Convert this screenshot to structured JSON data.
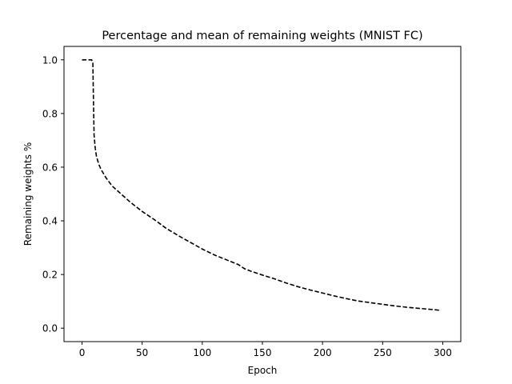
{
  "chart_data": {
    "type": "line",
    "title": "Percentage and mean of remaining weights (MNIST FC)",
    "xlabel": "Epoch",
    "ylabel": "Remaining weights %",
    "xlim": [
      -15,
      315
    ],
    "ylim": [
      -0.05,
      1.05
    ],
    "xticks": [
      0,
      50,
      100,
      150,
      200,
      250,
      300
    ],
    "yticks": [
      "0.0",
      "0.2",
      "0.4",
      "0.6",
      "0.8",
      "1.0"
    ],
    "grid": false,
    "line_color": "#000000",
    "line_style": "dashed",
    "series": [
      {
        "x": [
          0,
          5,
          8,
          9,
          9.5,
          10,
          11,
          12,
          14,
          16,
          20,
          25,
          30,
          35,
          40,
          50,
          60,
          70,
          80,
          90,
          100,
          110,
          120,
          130,
          135,
          140,
          150,
          160,
          170,
          180,
          190,
          200,
          210,
          220,
          230,
          240,
          250,
          260,
          270,
          280,
          290,
          297
        ],
        "y": [
          1.0,
          1.0,
          1.0,
          0.99,
          0.85,
          0.72,
          0.67,
          0.64,
          0.61,
          0.59,
          0.56,
          0.53,
          0.51,
          0.49,
          0.47,
          0.435,
          0.405,
          0.372,
          0.345,
          0.32,
          0.295,
          0.273,
          0.255,
          0.237,
          0.222,
          0.213,
          0.198,
          0.184,
          0.168,
          0.154,
          0.142,
          0.131,
          0.12,
          0.11,
          0.101,
          0.095,
          0.089,
          0.083,
          0.078,
          0.074,
          0.07,
          0.067
        ]
      }
    ]
  }
}
